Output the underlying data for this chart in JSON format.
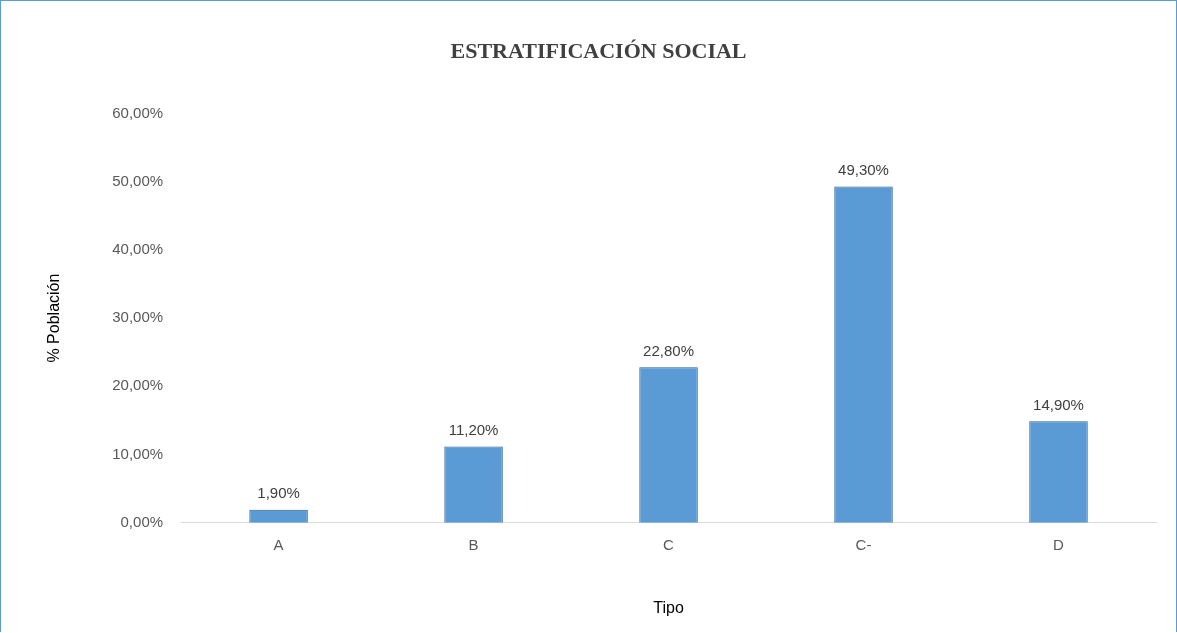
{
  "chart_data": {
    "type": "bar",
    "title": "ESTRATIFICACIÓN SOCIAL",
    "xlabel": "Tipo",
    "ylabel": "% Población",
    "categories": [
      "A",
      "B",
      "C",
      "C-",
      "D"
    ],
    "values": [
      1.9,
      11.2,
      22.8,
      49.3,
      14.9
    ],
    "value_labels": [
      "1,90%",
      "11,20%",
      "22,80%",
      "49,30%",
      "14,90%"
    ],
    "color": "#5b9bd5",
    "ylim": [
      0,
      60
    ],
    "yticks": [
      {
        "value": 0,
        "label": "0,00%"
      },
      {
        "value": 10,
        "label": "10,00%"
      },
      {
        "value": 20,
        "label": "20,00%"
      },
      {
        "value": 30,
        "label": "30,00%"
      },
      {
        "value": 40,
        "label": "40,00%"
      },
      {
        "value": 50,
        "label": "50,00%"
      },
      {
        "value": 60,
        "label": "60,00%"
      }
    ],
    "grid": false,
    "legend": false
  }
}
